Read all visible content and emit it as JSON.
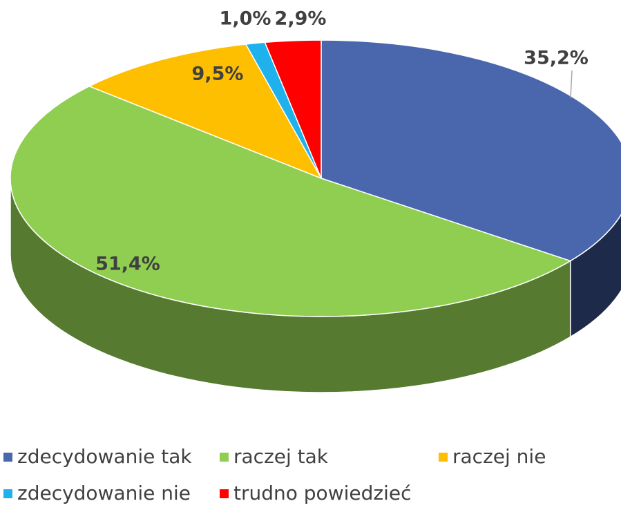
{
  "chart_data": {
    "type": "pie",
    "categories": [
      "zdecydowanie tak",
      "raczej tak",
      "raczej nie",
      "zdecydowanie nie",
      "trudno powiedzieć"
    ],
    "values": [
      35.2,
      51.4,
      9.5,
      1.0,
      2.9
    ],
    "value_labels": [
      "35,2%",
      "51,4%",
      "9,5%",
      "1,0%",
      "2,9%"
    ],
    "colors": [
      "#4a66ac",
      "#8fce51",
      "#fdbf00",
      "#1eb1ec",
      "#fe0000"
    ],
    "side_colors": [
      "#1e2a4a",
      "#557a30",
      "#a07800",
      "#0f6f95",
      "#900000"
    ]
  }
}
